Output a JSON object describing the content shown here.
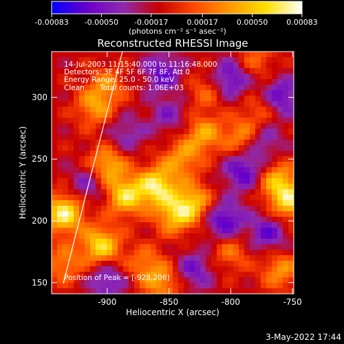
{
  "colorbar": {
    "tick_labels": [
      "-0.00083",
      "-0.00050",
      "-0.00017",
      "0.00017",
      "0.00050",
      "0.00083"
    ],
    "tick_values": [
      -0.00083,
      -0.0005,
      -0.00017,
      0.00017,
      0.0005,
      0.00083
    ],
    "range": [
      -0.00083,
      0.00083
    ],
    "units_label": "(photons cm⁻² s⁻¹ asec⁻²)",
    "colors": [
      "#0000ff",
      "#6a00c8",
      "#8e2ab0",
      "#c80000",
      "#ff4a00",
      "#ff9a00",
      "#ffe000",
      "#ffffff"
    ]
  },
  "chart_data": {
    "type": "heatmap",
    "title": "Reconstructed RHESSI Image",
    "xlabel": "Heliocentric X (arcsec)",
    "ylabel": "Heliocentric Y (arcsec)",
    "xlim": [
      -945,
      -749
    ],
    "ylim": [
      141,
      337
    ],
    "xticks": [
      -900,
      -850,
      -800,
      -750
    ],
    "xtick_labels": [
      "-900",
      "-850",
      "-800",
      "-750"
    ],
    "yticks": [
      150,
      200,
      250,
      300
    ],
    "ytick_labels": [
      "150",
      "200",
      "250",
      "300"
    ],
    "peak": {
      "x": -928,
      "y": 206
    },
    "hotspots": [
      {
        "x": -935,
        "y": 206,
        "value": 0.00083
      },
      {
        "x": -860,
        "y": 228,
        "value": 0.00078
      },
      {
        "x": -885,
        "y": 220,
        "value": 0.0007
      },
      {
        "x": -905,
        "y": 180,
        "value": 0.00072
      },
      {
        "x": -900,
        "y": 245,
        "value": 0.0006
      },
      {
        "x": -830,
        "y": 215,
        "value": 0.00055
      },
      {
        "x": -840,
        "y": 250,
        "value": 0.00045
      },
      {
        "x": -822,
        "y": 270,
        "value": 0.0005
      },
      {
        "x": -790,
        "y": 268,
        "value": 0.00048
      },
      {
        "x": -762,
        "y": 232,
        "value": 0.00055
      },
      {
        "x": -752,
        "y": 215,
        "value": 0.00065
      },
      {
        "x": -760,
        "y": 160,
        "value": 0.00045
      },
      {
        "x": -800,
        "y": 175,
        "value": 0.00035
      },
      {
        "x": -820,
        "y": 305,
        "value": 0.0003
      },
      {
        "x": -900,
        "y": 310,
        "value": 0.00035
      },
      {
        "x": -935,
        "y": 165,
        "value": 0.0004
      },
      {
        "x": -870,
        "y": 165,
        "value": 0.00035
      },
      {
        "x": -780,
        "y": 330,
        "value": 0.0003
      },
      {
        "x": -845,
        "y": 205,
        "value": 0.0006
      },
      {
        "x": -775,
        "y": 290,
        "value": 0.0003
      },
      {
        "x": -855,
        "y": 150,
        "value": 0.00045
      },
      {
        "x": -910,
        "y": 292,
        "value": 0.00045
      },
      {
        "x": -885,
        "y": 270,
        "value": -0.0003
      },
      {
        "x": -855,
        "y": 320,
        "value": -0.00045
      },
      {
        "x": -800,
        "y": 315,
        "value": -0.0005
      },
      {
        "x": -790,
        "y": 240,
        "value": -0.0005
      },
      {
        "x": -805,
        "y": 200,
        "value": -0.00055
      },
      {
        "x": -760,
        "y": 300,
        "value": -0.0005
      },
      {
        "x": -900,
        "y": 152,
        "value": -0.0004
      },
      {
        "x": -830,
        "y": 160,
        "value": -0.0004
      },
      {
        "x": -770,
        "y": 190,
        "value": -0.00045
      },
      {
        "x": -915,
        "y": 230,
        "value": -0.00035
      },
      {
        "x": -850,
        "y": 285,
        "value": -0.0003
      },
      {
        "x": -775,
        "y": 265,
        "value": -0.0004
      }
    ]
  },
  "annotations": {
    "time_range": "14-Jul-2003 11:15:40.000 to 11:16:48.000",
    "detectors": "Detectors: 3F 4F 5F 6F 7F 8F, Att 0",
    "energy_range": "Energy Range: 25.0 - 50.0 keV",
    "clean_label": "Clean",
    "total_counts": "Total counts: 1.06E+03",
    "peak_text": "Position of Peak = [-928,206]"
  },
  "footer": {
    "date_stamp": "3-May-2022 17:44"
  }
}
